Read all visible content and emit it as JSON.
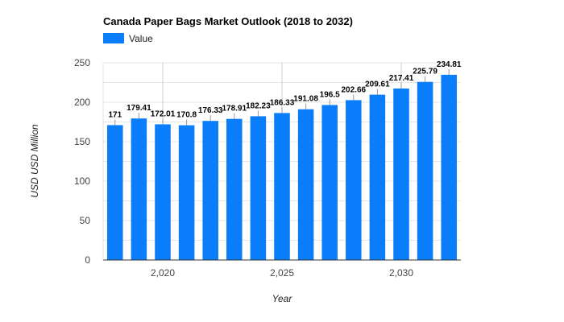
{
  "chart_data": {
    "type": "bar",
    "title": "Canada Paper Bags Market Outlook (2018 to 2032)",
    "xlabel": "Year",
    "ylabel": "USD USD Million",
    "legend": {
      "position": "top-left",
      "entries": [
        "Value"
      ]
    },
    "x": [
      2018,
      2019,
      2020,
      2021,
      2022,
      2023,
      2024,
      2025,
      2026,
      2027,
      2028,
      2029,
      2030,
      2031,
      2032
    ],
    "xticks": [
      2020,
      2025,
      2030
    ],
    "xtick_labels": [
      "2,020",
      "2,025",
      "2,030"
    ],
    "yticks": [
      0,
      50,
      100,
      150,
      200,
      250
    ],
    "ylim": [
      0,
      250
    ],
    "grid": true,
    "series": [
      {
        "name": "Value",
        "color": "#0a7dfa",
        "values": [
          171,
          179.41,
          172.01,
          170.8,
          176.33,
          178.91,
          182.23,
          186.33,
          191.08,
          196.5,
          202.66,
          209.61,
          217.41,
          225.79,
          234.81
        ],
        "labels": [
          "171",
          "179.41",
          "172.01",
          "170.8",
          "176.33",
          "178.91",
          "182.23",
          "186.33",
          "191.08",
          "196.5",
          "202.66",
          "209.61",
          "217.41",
          "225.79",
          "234.81"
        ]
      }
    ]
  }
}
